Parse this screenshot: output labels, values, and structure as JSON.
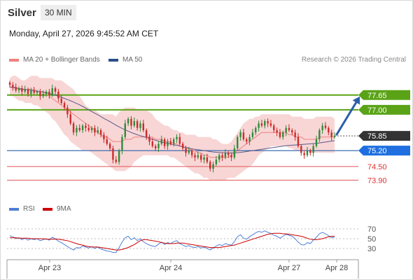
{
  "header": {
    "instrument": "Silver",
    "interval": "30 MIN",
    "datetime": "Monday, April 27, 2026 9:45:52 AM CET"
  },
  "legend": {
    "ma20_label": "MA 20 + Bollinger Bands",
    "ma50_label": "MA 50",
    "research": "Research © 2026 Trading Central",
    "rsi_label": "RSI",
    "ma9_label": "9MA"
  },
  "colors": {
    "up": "#2e8b3a",
    "down": "#cc2a2a",
    "bollinger": "#f6c8c8",
    "ma20": "#f08080",
    "ma50": "#5a5a8a",
    "resistance": "#5aa317",
    "pivot": "#2a5fa8",
    "support": "#e05555",
    "current": "#333333",
    "rsi": "#4f7fd6",
    "rsi_ma": "#cc0000"
  },
  "chart_data": [
    {
      "type": "candlestick",
      "title": "Silver",
      "x_labels": [
        "Apr 23",
        "Apr 24",
        "Apr 27",
        "Apr 28"
      ],
      "ylim": [
        73.2,
        78.6
      ],
      "levels": [
        {
          "label": "77.65",
          "value": 77.65,
          "kind": "resistance"
        },
        {
          "label": "77.00",
          "value": 77.0,
          "kind": "resistance"
        },
        {
          "label": "75.85",
          "value": 75.85,
          "kind": "current"
        },
        {
          "label": "75.20",
          "value": 75.2,
          "kind": "pivot"
        },
        {
          "label": "74.50",
          "value": 74.5,
          "kind": "support"
        },
        {
          "label": "73.90",
          "value": 73.9,
          "kind": "support"
        }
      ],
      "close": [
        78.1,
        78.0,
        77.85,
        77.95,
        77.8,
        77.9,
        77.7,
        77.85,
        77.75,
        77.8,
        77.6,
        77.7,
        77.8,
        77.65,
        77.95,
        77.8,
        77.5,
        77.3,
        77.1,
        76.8,
        76.4,
        76.0,
        76.2,
        76.1,
        76.3,
        76.2,
        76.1,
        76.2,
        76.0,
        76.1,
        75.9,
        75.7,
        75.5,
        75.3,
        74.8,
        74.7,
        75.2,
        75.8,
        76.4,
        76.6,
        76.3,
        76.5,
        76.2,
        76.4,
        76.1,
        75.8,
        75.6,
        75.4,
        75.3,
        75.5,
        75.7,
        75.4,
        75.6,
        75.5,
        75.7,
        75.8,
        75.5,
        75.3,
        75.1,
        75.2,
        75.0,
        74.9,
        75.0,
        74.8,
        74.9,
        74.7,
        74.4,
        74.6,
        74.8,
        75.0,
        74.9,
        75.1,
        75.0,
        74.9,
        75.3,
        75.8,
        76.0,
        75.7,
        75.6,
        75.8,
        76.0,
        76.2,
        76.4,
        76.3,
        76.5,
        76.4,
        76.3,
        76.1,
        76.0,
        75.8,
        76.0,
        76.2,
        76.1,
        76.0,
        75.8,
        75.4,
        75.1,
        75.0,
        75.2,
        75.1,
        75.4,
        75.7,
        76.1,
        76.3,
        76.2,
        76.0,
        75.8,
        75.85
      ],
      "bollinger_upper": [
        78.4,
        78.5,
        78.5,
        78.4,
        78.3,
        78.3,
        78.4,
        78.5,
        78.5,
        78.5,
        78.4,
        78.4,
        78.4,
        78.4,
        78.4,
        78.3,
        78.3,
        78.3,
        78.2,
        78.1,
        78.0,
        77.9,
        77.7,
        77.6,
        77.4,
        77.2,
        77.1,
        77.0,
        77.0,
        76.9,
        76.8,
        76.8,
        76.8,
        76.8,
        76.8,
        76.7,
        76.9,
        77.0,
        77.1,
        77.1,
        77.1,
        77.1,
        77.0,
        77.0,
        77.0,
        77.0,
        76.9,
        76.8,
        76.6,
        76.5,
        76.4,
        76.3,
        76.3,
        76.2,
        76.1,
        76.1,
        76.0,
        76.0,
        75.9,
        75.9,
        75.9,
        75.9,
        75.8,
        75.8,
        75.8,
        75.8,
        75.8,
        75.7,
        75.7,
        75.6,
        75.5,
        75.5,
        75.5,
        75.6,
        75.8,
        76.0,
        76.2,
        76.4,
        76.5,
        76.6,
        76.6,
        76.7,
        76.7,
        76.8,
        76.8,
        76.8,
        76.8,
        76.8,
        76.8,
        76.8,
        76.8,
        76.8,
        76.8,
        76.7,
        76.7,
        76.7,
        76.7,
        76.6,
        76.6,
        76.6,
        76.6,
        76.7,
        76.7,
        76.7,
        76.7,
        76.7,
        76.7,
        76.6
      ],
      "bollinger_lower": [
        77.6,
        77.6,
        77.5,
        77.4,
        77.4,
        77.3,
        77.3,
        77.3,
        77.2,
        77.2,
        77.1,
        77.0,
        76.9,
        76.8,
        76.6,
        76.5,
        76.3,
        76.1,
        75.9,
        75.8,
        75.6,
        75.5,
        75.4,
        75.3,
        75.2,
        75.2,
        75.2,
        75.1,
        75.0,
        74.9,
        74.8,
        74.7,
        74.6,
        74.5,
        74.4,
        74.3,
        74.3,
        74.3,
        74.3,
        74.4,
        74.5,
        74.7,
        74.8,
        74.9,
        75.0,
        75.0,
        75.0,
        75.0,
        75.0,
        75.0,
        75.0,
        75.0,
        75.0,
        74.9,
        74.9,
        74.8,
        74.7,
        74.6,
        74.5,
        74.4,
        74.3,
        74.2,
        74.2,
        74.1,
        74.0,
        74.0,
        73.9,
        73.9,
        73.9,
        73.9,
        73.9,
        73.9,
        74.0,
        74.0,
        74.0,
        74.1,
        74.2,
        74.3,
        74.4,
        74.5,
        74.6,
        74.8,
        75.0,
        75.1,
        75.2,
        75.3,
        75.4,
        75.4,
        75.4,
        75.4,
        75.4,
        75.4,
        75.3,
        75.3,
        75.2,
        75.2,
        75.2,
        75.2,
        75.2,
        75.1,
        75.1,
        75.1,
        75.1,
        75.1,
        75.1,
        75.1,
        75.1,
        75.1
      ],
      "ma20": [
        78.0,
        78.0,
        78.0,
        77.9,
        77.9,
        77.9,
        77.9,
        77.9,
        77.9,
        77.8,
        77.8,
        77.8,
        77.7,
        77.6,
        77.5,
        77.4,
        77.3,
        77.2,
        77.1,
        77.0,
        76.9,
        76.8,
        76.7,
        76.6,
        76.5,
        76.4,
        76.3,
        76.2,
        76.1,
        76.0,
        75.9,
        75.8,
        75.8,
        75.7,
        75.6,
        75.6,
        75.6,
        75.6,
        75.7,
        75.7,
        75.7,
        75.8,
        75.8,
        75.8,
        75.8,
        75.8,
        75.8,
        75.8,
        75.7,
        75.7,
        75.7,
        75.6,
        75.6,
        75.6,
        75.5,
        75.5,
        75.4,
        75.4,
        75.3,
        75.3,
        75.2,
        75.2,
        75.1,
        75.1,
        75.0,
        75.0,
        74.9,
        74.9,
        74.9,
        74.9,
        74.9,
        74.9,
        74.9,
        75.0,
        75.1,
        75.2,
        75.3,
        75.4,
        75.5,
        75.6,
        75.7,
        75.8,
        75.9,
        76.0,
        76.0,
        76.0,
        76.0,
        76.0,
        76.0,
        76.0,
        76.0,
        76.0,
        75.9,
        75.9,
        75.8,
        75.8,
        75.8,
        75.7,
        75.7,
        75.7,
        75.7,
        75.7,
        75.8,
        75.8,
        75.8,
        75.8,
        75.8,
        75.8
      ],
      "ma50": [
        78.0,
        77.98,
        77.96,
        77.94,
        77.92,
        77.9,
        77.88,
        77.86,
        77.84,
        77.82,
        77.8,
        77.78,
        77.75,
        77.72,
        77.68,
        77.64,
        77.6,
        77.55,
        77.5,
        77.45,
        77.4,
        77.34,
        77.28,
        77.22,
        77.15,
        77.08,
        77.0,
        76.92,
        76.85,
        76.78,
        76.7,
        76.62,
        76.55,
        76.48,
        76.4,
        76.32,
        76.25,
        76.18,
        76.12,
        76.06,
        76.0,
        75.95,
        75.9,
        75.86,
        75.82,
        75.78,
        75.74,
        75.7,
        75.66,
        75.62,
        75.58,
        75.55,
        75.52,
        75.49,
        75.46,
        75.43,
        75.4,
        75.37,
        75.34,
        75.31,
        75.28,
        75.26,
        75.24,
        75.22,
        75.2,
        75.18,
        75.16,
        75.14,
        75.13,
        75.12,
        75.11,
        75.1,
        75.1,
        75.1,
        75.1,
        75.11,
        75.12,
        75.14,
        75.16,
        75.18,
        75.2,
        75.22,
        75.24,
        75.26,
        75.28,
        75.3,
        75.32,
        75.34,
        75.36,
        75.38,
        75.4,
        75.42,
        75.43,
        75.44,
        75.45,
        75.46,
        75.47,
        75.48,
        75.49,
        75.5,
        75.51,
        75.52,
        75.54,
        75.56,
        75.58,
        75.6,
        75.62,
        75.64
      ],
      "forecast_target": 77.65
    },
    {
      "type": "line",
      "title": "RSI",
      "yticks": [
        70,
        50,
        30
      ],
      "ylim": [
        20,
        80
      ],
      "series": [
        {
          "name": "RSI",
          "values": [
            56,
            54,
            50,
            52,
            48,
            51,
            47,
            50,
            48,
            50,
            46,
            48,
            50,
            47,
            53,
            50,
            45,
            42,
            38,
            34,
            30,
            27,
            32,
            31,
            35,
            33,
            31,
            34,
            30,
            33,
            29,
            27,
            25,
            24,
            22,
            22,
            32,
            43,
            52,
            55,
            48,
            52,
            46,
            50,
            44,
            40,
            37,
            35,
            34,
            39,
            43,
            38,
            42,
            40,
            44,
            46,
            40,
            37,
            34,
            36,
            33,
            32,
            34,
            31,
            33,
            30,
            27,
            31,
            35,
            38,
            36,
            40,
            38,
            37,
            44,
            54,
            58,
            51,
            49,
            54,
            58,
            62,
            65,
            63,
            66,
            63,
            61,
            57,
            55,
            51,
            55,
            59,
            57,
            55,
            50,
            43,
            38,
            37,
            42,
            40,
            47,
            53,
            60,
            63,
            60,
            56,
            52,
            53
          ]
        },
        {
          "name": "9MA",
          "values": [
            52,
            52,
            52,
            51,
            51,
            51,
            51,
            50,
            50,
            50,
            50,
            50,
            49,
            49,
            49,
            49,
            49,
            48,
            47,
            46,
            44,
            42,
            40,
            38,
            37,
            35,
            34,
            33,
            33,
            33,
            32,
            31,
            30,
            29,
            28,
            27,
            27,
            28,
            30,
            32,
            35,
            38,
            42,
            46,
            48,
            48,
            47,
            46,
            45,
            44,
            42,
            41,
            40,
            40,
            40,
            41,
            41,
            41,
            40,
            39,
            38,
            37,
            36,
            35,
            34,
            33,
            32,
            32,
            32,
            32,
            33,
            34,
            35,
            36,
            37,
            39,
            41,
            43,
            45,
            47,
            49,
            51,
            53,
            55,
            57,
            59,
            60,
            61,
            61,
            61,
            60,
            60,
            59,
            58,
            57,
            56,
            55,
            53,
            51,
            49,
            48,
            48,
            49,
            50,
            52,
            54,
            55,
            55
          ]
        }
      ]
    }
  ]
}
